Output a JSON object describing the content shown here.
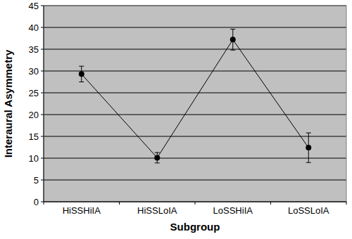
{
  "chart_data": {
    "type": "line",
    "x_label": "Subgroup",
    "y_label": "Interaural Asymmetry",
    "categories": [
      "HiSSHiIA",
      "HiSSLoIA",
      "LoSSHiIA",
      "LoSSLoIA"
    ],
    "values": [
      29.3,
      10.1,
      37.2,
      12.4
    ],
    "errors": [
      1.8,
      1.2,
      2.4,
      3.4
    ],
    "color": "#000000",
    "marker": "circle",
    "ylim": [
      0,
      45
    ],
    "yticks": [
      0,
      5,
      10,
      15,
      20,
      25,
      30,
      35,
      40,
      45
    ],
    "grid": true
  }
}
